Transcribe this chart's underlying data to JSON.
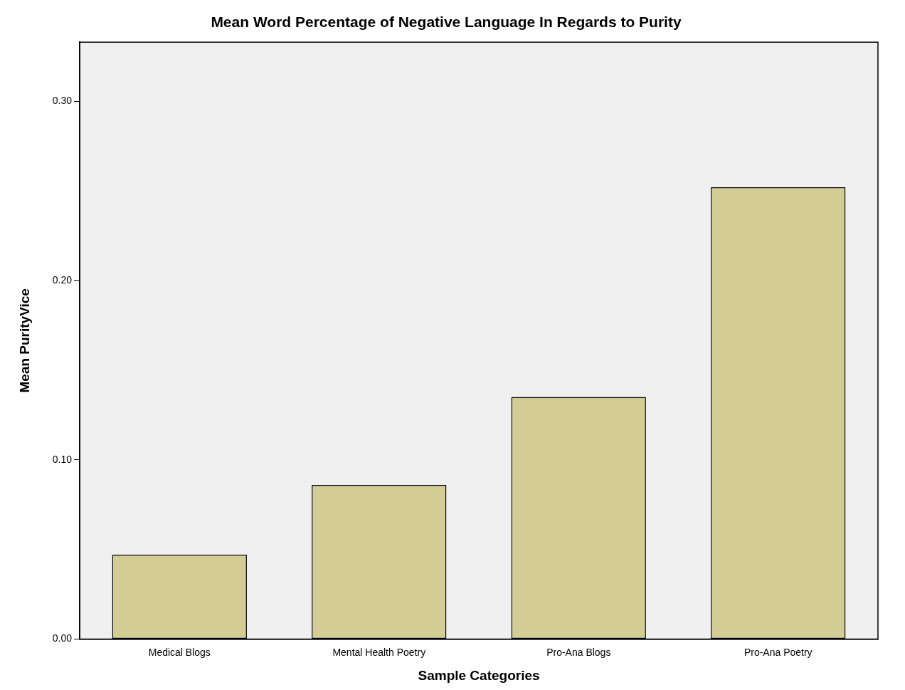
{
  "chart_data": {
    "type": "bar",
    "title": "Mean Word Percentage of Negative Language In Regards to Purity",
    "xlabel": "Sample Categories",
    "ylabel": "Mean PurityVice",
    "categories": [
      "Medical Blogs",
      "Mental Health Poetry",
      "Pro-Ana Blogs",
      "Pro-Ana Poetry"
    ],
    "values": [
      0.047,
      0.086,
      0.135,
      0.252
    ],
    "color": "#d3cd95",
    "ylim": [
      0,
      0.333
    ],
    "yticks": [
      {
        "value": 0,
        "label": "0.00"
      },
      {
        "value": 0.1,
        "label": "0.10"
      },
      {
        "value": 0.2,
        "label": "0.20"
      },
      {
        "value": 0.3,
        "label": "0.30"
      }
    ],
    "grid": false,
    "legend": false
  }
}
